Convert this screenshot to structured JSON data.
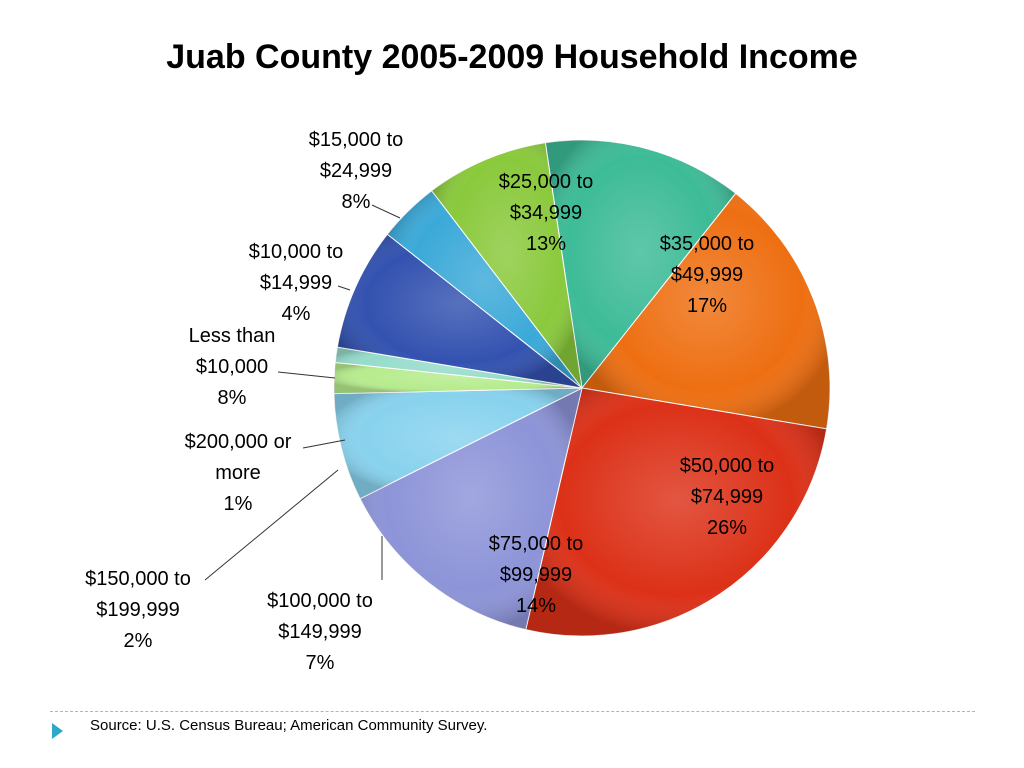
{
  "title": "Juab County 2005-2009 Household Income",
  "source": "Source:  U.S. Census Bureau; American Community Survey.",
  "chart_data": {
    "type": "pie",
    "title": "Juab County 2005-2009 Household Income",
    "unit": "%",
    "slices": [
      {
        "label": [
          "$25,000 to",
          "$34,999"
        ],
        "value": 13,
        "display": "13%",
        "color": "#3dbb97"
      },
      {
        "label": [
          "$35,000 to",
          "$49,999"
        ],
        "value": 17,
        "display": "17%",
        "color": "#ee6f12"
      },
      {
        "label": [
          "$50,000 to",
          "$74,999"
        ],
        "value": 26,
        "display": "26%",
        "color": "#dc3118"
      },
      {
        "label": [
          "$75,000 to",
          "$99,999"
        ],
        "value": 14,
        "display": "14%",
        "color": "#8d94d8"
      },
      {
        "label": [
          "$100,000 to",
          "$149,999"
        ],
        "value": 7,
        "display": "7%",
        "color": "#88d2ee"
      },
      {
        "label": [
          "$150,000 to",
          "$199,999"
        ],
        "value": 2,
        "display": "2%",
        "color": "#b7ec8e"
      },
      {
        "label": [
          "$200,000 or",
          "more"
        ],
        "value": 1,
        "display": "1%",
        "color": "#96dccb"
      },
      {
        "label": [
          "Less than",
          "$10,000"
        ],
        "value": 8,
        "display": "8%",
        "color": "#3352b0"
      },
      {
        "label": [
          "$10,000 to",
          "$14,999"
        ],
        "value": 4,
        "display": "4%",
        "color": "#3ba9d8"
      },
      {
        "label": [
          "$15,000 to",
          "$24,999"
        ],
        "value": 8,
        "display": "8%",
        "color": "#8ac93c"
      }
    ]
  }
}
